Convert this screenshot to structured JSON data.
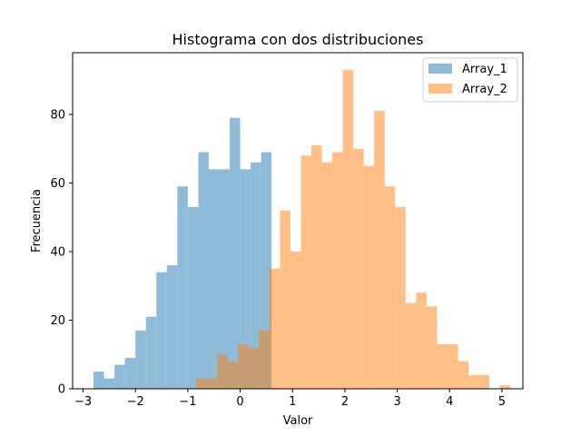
{
  "chart_data": {
    "type": "bar",
    "title": "Histograma con dos distribuciones",
    "xlabel": "Valor",
    "ylabel": "Frecuencia",
    "xlim": [
      -3.2,
      5.4
    ],
    "ylim": [
      0,
      98
    ],
    "xticks": [
      -3,
      -2,
      -1,
      0,
      1,
      2,
      3,
      4,
      5
    ],
    "yticks": [
      0,
      20,
      40,
      60,
      80
    ],
    "grid": false,
    "legend_position": "top-right",
    "bar_alpha": 0.5,
    "series": [
      {
        "name": "Array_1",
        "color": "#1f77b4",
        "bin_start": -2.8,
        "bin_width": 0.2,
        "counts": [
          5,
          3,
          7,
          9,
          17,
          21,
          34,
          36,
          59,
          53,
          69,
          64,
          64,
          79,
          64,
          66,
          69
        ]
      },
      {
        "name": "Array_2",
        "color": "#ff7f0e",
        "bin_start": -0.84,
        "bin_width": 0.2,
        "counts": [
          3,
          3,
          10,
          8,
          13,
          12,
          17,
          35,
          52,
          40,
          68,
          71,
          66,
          69,
          93,
          70,
          65,
          81,
          59,
          53,
          25,
          28,
          24,
          13,
          13,
          8,
          4,
          4,
          0,
          1
        ]
      }
    ]
  }
}
